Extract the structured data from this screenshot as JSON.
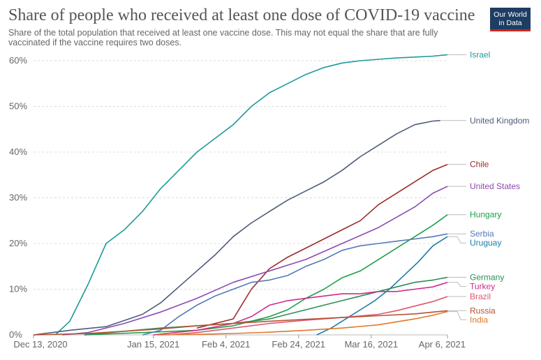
{
  "title": "Share of people who received at least one dose of COVID-19 vaccine",
  "subtitle": "Share of the total population that received at least one vaccine dose. This may not equal the share that are fully vaccinated if the vaccine requires two doses.",
  "logo": {
    "line1": "Our World",
    "line2": "in Data"
  },
  "chart_data": {
    "type": "line",
    "title": "Share of people who received at least one dose of COVID-19 vaccine",
    "x_ticks": [
      "Dec 13, 2020",
      "Jan 15, 2021",
      "Feb 4, 2021",
      "Feb 24, 2021",
      "Mar 16, 2021",
      "Apr 6, 2021"
    ],
    "x_tick_days": [
      0,
      33,
      53,
      73,
      93,
      114
    ],
    "xlim": [
      "2020-12-13",
      "2021-04-06"
    ],
    "y_ticks": [
      "0%",
      "10%",
      "20%",
      "30%",
      "40%",
      "50%",
      "60%"
    ],
    "y_tick_values": [
      0,
      10,
      20,
      30,
      40,
      50,
      60
    ],
    "ylim": [
      0,
      60
    ],
    "grid": true,
    "legend": "right",
    "series": [
      {
        "name": "Israel",
        "color": "#1e9a99",
        "x": [
          6,
          10,
          15,
          20,
          25,
          30,
          35,
          40,
          45,
          50,
          55,
          60,
          65,
          70,
          75,
          80,
          85,
          90,
          95,
          100,
          105,
          110,
          114
        ],
        "y": [
          0,
          3,
          11,
          20,
          23,
          27,
          32,
          36,
          40,
          43,
          46,
          50,
          53,
          55,
          57,
          58.5,
          59.5,
          60,
          60.3,
          60.6,
          60.8,
          61,
          61.3
        ]
      },
      {
        "name": "United Kingdom",
        "color": "#4d5b79",
        "x": [
          0,
          10,
          20,
          30,
          35,
          40,
          45,
          50,
          55,
          60,
          65,
          70,
          75,
          80,
          85,
          90,
          95,
          100,
          105,
          110,
          112
        ],
        "y": [
          0,
          1,
          1.8,
          4.5,
          7,
          10.5,
          14,
          17.5,
          21.5,
          24.5,
          27,
          29.5,
          31.5,
          33.5,
          36,
          39,
          41.5,
          44,
          46,
          46.8,
          46.9
        ]
      },
      {
        "name": "Chile",
        "color": "#9b2c2c",
        "x": [
          45,
          50,
          55,
          60,
          65,
          70,
          75,
          80,
          85,
          90,
          95,
          100,
          105,
          110,
          114
        ],
        "y": [
          1.5,
          2.5,
          3.5,
          10,
          14.5,
          17,
          19,
          21,
          23,
          25,
          28.5,
          31,
          33.5,
          36,
          37.3
        ]
      },
      {
        "name": "United States",
        "color": "#8c4ab3",
        "x": [
          8,
          15,
          25,
          35,
          45,
          55,
          65,
          75,
          85,
          95,
          105,
          110,
          114
        ],
        "y": [
          0,
          0.5,
          2.5,
          5,
          8,
          11.5,
          14,
          16.5,
          20,
          23.5,
          28,
          31,
          32.5
        ]
      },
      {
        "name": "Hungary",
        "color": "#1f9e4a",
        "x": [
          14,
          30,
          45,
          55,
          65,
          70,
          75,
          80,
          85,
          90,
          95,
          100,
          105,
          110,
          114
        ],
        "y": [
          0,
          0.5,
          1,
          2,
          4,
          5.5,
          8,
          10,
          12.5,
          14,
          16.5,
          19,
          21.5,
          24,
          26.3
        ]
      },
      {
        "name": "Serbia",
        "color": "#5478b8",
        "x": [
          30,
          35,
          40,
          45,
          50,
          55,
          60,
          65,
          70,
          75,
          80,
          85,
          90,
          95,
          100,
          105,
          110,
          114
        ],
        "y": [
          0,
          1,
          4,
          6.5,
          8.5,
          10,
          11.5,
          12,
          13,
          15,
          16.5,
          18.5,
          19.5,
          20,
          20.5,
          21,
          21.5,
          22.1
        ]
      },
      {
        "name": "Uruguay",
        "color": "#1d7ca8",
        "x": [
          78,
          82,
          86,
          90,
          94,
          98,
          102,
          106,
          110,
          114
        ],
        "y": [
          0,
          1.5,
          3.5,
          5.5,
          7.5,
          10,
          13,
          16,
          19.5,
          21.5
        ]
      },
      {
        "name": "Germany",
        "color": "#2a8f55",
        "x": [
          14,
          25,
          35,
          45,
          55,
          60,
          65,
          70,
          75,
          80,
          85,
          90,
          95,
          100,
          105,
          110,
          114
        ],
        "y": [
          0,
          0.8,
          1.5,
          2,
          2.5,
          3,
          3.5,
          4.5,
          5.5,
          6.5,
          7.5,
          8.5,
          9.5,
          10.5,
          11.5,
          12,
          12.6
        ]
      },
      {
        "name": "Turkey",
        "color": "#cc2d8a",
        "x": [
          33,
          45,
          55,
          60,
          65,
          70,
          75,
          80,
          85,
          90,
          95,
          100,
          105,
          110,
          114
        ],
        "y": [
          0,
          1,
          2.5,
          4,
          6.5,
          7.5,
          8,
          8.5,
          9,
          9,
          9.5,
          9.5,
          10,
          10.5,
          11.5
        ]
      },
      {
        "name": "Brazil",
        "color": "#e0556e",
        "x": [
          37,
          45,
          55,
          65,
          75,
          85,
          95,
          100,
          105,
          110,
          114
        ],
        "y": [
          0,
          0.5,
          1.5,
          2.5,
          3.2,
          3.8,
          4.5,
          5.3,
          6.3,
          7.3,
          8.4
        ]
      },
      {
        "name": "India",
        "color": "#e0792b",
        "x": [
          34,
          45,
          55,
          65,
          75,
          85,
          95,
          105,
          110,
          114
        ],
        "y": [
          0,
          0.1,
          0.3,
          0.6,
          1,
          1.5,
          2.2,
          3.5,
          4.3,
          5.1
        ]
      },
      {
        "name": "Russia",
        "color": "#b65231",
        "x": [
          0,
          15,
          25,
          35,
          45,
          55,
          65,
          75,
          85,
          95,
          105,
          110,
          114
        ],
        "y": [
          0,
          0.3,
          0.8,
          1.3,
          2,
          2.5,
          3,
          3.4,
          3.8,
          4.2,
          4.6,
          5,
          5.3
        ]
      }
    ]
  }
}
